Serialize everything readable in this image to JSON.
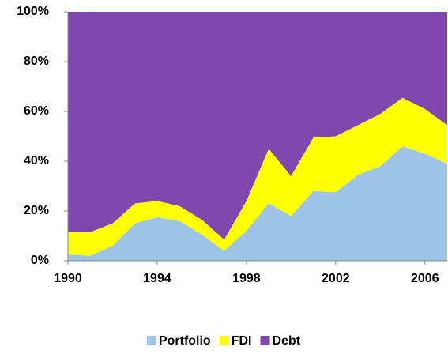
{
  "chart_data": {
    "type": "stacked_area",
    "x": [
      1990,
      1991,
      1992,
      1993,
      1994,
      1995,
      1996,
      1997,
      1998,
      1999,
      2000,
      2001,
      2002,
      2003,
      2004,
      2005,
      2006,
      2007
    ],
    "series": [
      {
        "name": "Portfolio",
        "color": "#9dc3e6",
        "values": [
          2.5,
          2,
          6,
          15,
          17.5,
          16,
          10.5,
          4,
          12,
          23,
          18,
          28,
          27.5,
          34.5,
          38,
          46,
          43,
          39
        ]
      },
      {
        "name": "FDI",
        "color": "#ffff00",
        "values": [
          9,
          9.5,
          9,
          8,
          6.5,
          6,
          6,
          4.5,
          12,
          22,
          16,
          21.5,
          22.5,
          20,
          21,
          19.5,
          18,
          15.5
        ]
      },
      {
        "name": "Debt",
        "color": "#8246af",
        "values": [
          88.5,
          88.5,
          85,
          77,
          76,
          78,
          83.5,
          91.5,
          76,
          55,
          66,
          50.5,
          50,
          45.5,
          41,
          34.5,
          39,
          45.5
        ]
      }
    ],
    "xlim": [
      1990,
      2007
    ],
    "xticks": [
      1990,
      1994,
      1998,
      2002,
      2006
    ],
    "ylim": [
      0,
      100
    ],
    "yticks": [
      {
        "value": 0,
        "label": "0%"
      },
      {
        "value": 20,
        "label": "20%"
      },
      {
        "value": 40,
        "label": "40%"
      },
      {
        "value": 60,
        "label": "60%"
      },
      {
        "value": 80,
        "label": "80%"
      },
      {
        "value": 100,
        "label": "100%"
      }
    ],
    "legend": "bottom"
  }
}
